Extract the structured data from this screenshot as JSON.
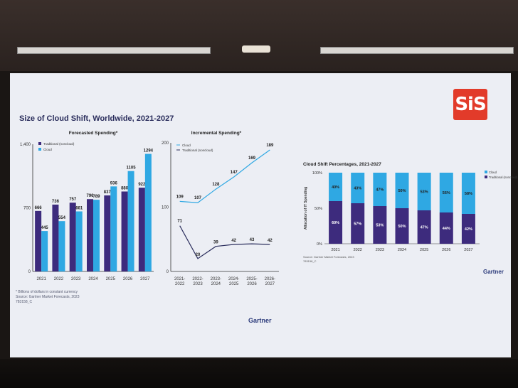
{
  "slide_title": "Size of Cloud Shift, Worldwide, 2021-2027",
  "brand_logo_text": "SiS",
  "gartner_label": "Gartner",
  "footnote_lines": [
    "* Billions of dollars in constant currency",
    "Source: Gartner Market Forecasts, 2023",
    "783158_C"
  ],
  "colors": {
    "traditional": "#3d2b7d",
    "cloud": "#2fa8e3",
    "title": "#2a2d5c"
  },
  "chart_data": [
    {
      "type": "bar",
      "title": "Forecasted Spending*",
      "categories": [
        "2021",
        "2022",
        "2023",
        "2024",
        "2025",
        "2026",
        "2027"
      ],
      "series": [
        {
          "name": "Traditional (noncloud)",
          "values": [
            666,
            736,
            757,
            796,
            837,
            880,
            922
          ]
        },
        {
          "name": "Cloud",
          "values": [
            445,
            554,
            661,
            789,
            936,
            1105,
            1294
          ]
        }
      ],
      "yticks": [
        "0",
        "700",
        "1,400"
      ],
      "ylim": [
        0,
        1400
      ],
      "legend": "top-left"
    },
    {
      "type": "line",
      "title": "Incremental Spending*",
      "categories": [
        "2021-\n2022",
        "2022-\n2023",
        "2023-\n2024",
        "2024-\n2025",
        "2025-\n2026",
        "2026-\n2027"
      ],
      "series": [
        {
          "name": "Cloud",
          "values": [
            109,
            107,
            128,
            147,
            169,
            189
          ]
        },
        {
          "name": "Traditional (noncloud)",
          "values": [
            71,
            20,
            39,
            42,
            43,
            42
          ]
        }
      ],
      "yticks": [
        "0",
        "100",
        "200"
      ],
      "ylim": [
        0,
        200
      ],
      "legend": "top-left"
    },
    {
      "type": "bar",
      "stacked": true,
      "title": "Cloud Shift Percentages, 2021-2027",
      "ylabel": "Allocation of IT Spending",
      "categories": [
        "2021",
        "2022",
        "2023",
        "2024",
        "2025",
        "2026",
        "2027"
      ],
      "series": [
        {
          "name": "Cloud",
          "values": [
            40,
            43,
            47,
            50,
            53,
            56,
            58
          ]
        },
        {
          "name": "Traditional (noncloud)",
          "values": [
            60,
            57,
            53,
            50,
            47,
            44,
            42
          ]
        }
      ],
      "yticks": [
        "0%",
        "50%",
        "100%"
      ],
      "ylim": [
        0,
        100
      ],
      "legend": "top-right",
      "source": "Source: Gartner Market Forecasts, 2023",
      "code": "783158_C"
    }
  ]
}
